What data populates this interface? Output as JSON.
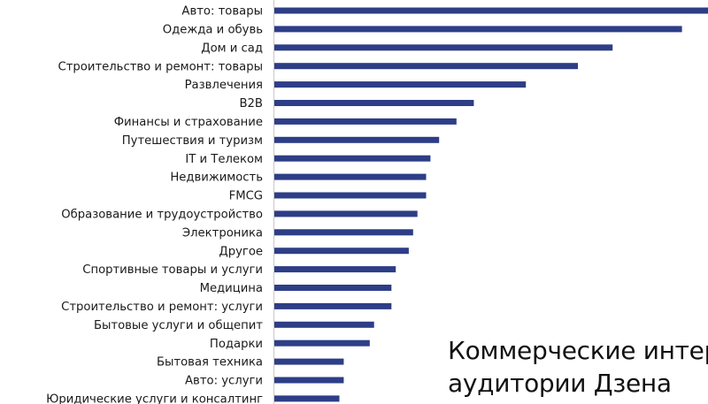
{
  "chart_data": {
    "type": "bar",
    "orientation": "horizontal",
    "title": "",
    "xlabel": "",
    "ylabel": "",
    "bar_color": "#2d3e87",
    "grid": false,
    "xlim": [
      0,
      100
    ],
    "categories": [
      "Авто: товары",
      "Одежда и обувь",
      "Дом и сад",
      "Строительство и ремонт: товары",
      "Развлечения",
      "B2B",
      "Финансы и страхование",
      "Путешествия и туризм",
      "IT и Телеком",
      "Недвижимость",
      "FMCG",
      "Образование и трудоустройство",
      "Электроника",
      "Другое",
      "Спортивные товары и услуги",
      "Медицина",
      "Строительство и ремонт: услуги",
      "Бытовые услуги и общепит",
      "Подарки",
      "Бытовая техника",
      "Авто: услуги",
      "Юридические услуги и консалтинг"
    ],
    "values": [
      100,
      94,
      78,
      70,
      58,
      46,
      42,
      38,
      36,
      35,
      35,
      33,
      32,
      31,
      28,
      27,
      27,
      23,
      22,
      16,
      16,
      15
    ]
  },
  "caption": {
    "line1": "Коммерческие интер",
    "line2": "аудитории Дзена"
  }
}
